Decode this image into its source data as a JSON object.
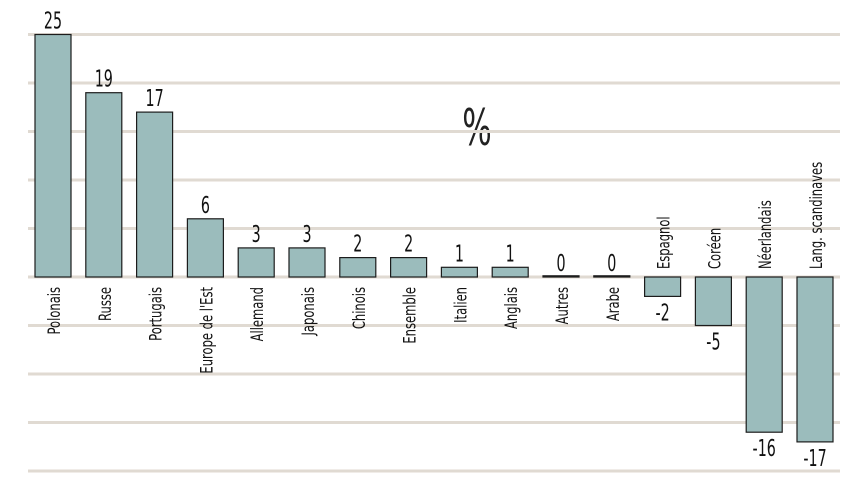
{
  "chart_data": {
    "type": "bar",
    "unit_label": "%",
    "categories": [
      "Polonais",
      "Russe",
      "Portugais",
      "Europe de l'Est",
      "Allemand",
      "Japonais",
      "Chinois",
      "Ensemble",
      "Italien",
      "Anglais",
      "Autres",
      "Arabe",
      "Espagnol",
      "Coréen",
      "Néerlandais",
      "Lang. scandinaves"
    ],
    "values": [
      25,
      19,
      17,
      6,
      3,
      3,
      2,
      2,
      1,
      1,
      0,
      0,
      -2,
      -5,
      -16,
      -17
    ],
    "value_labels": [
      "25",
      "19",
      "17",
      "6",
      "3",
      "3",
      "2",
      "2",
      "1",
      "1",
      "0",
      "0",
      "-2",
      "-5",
      "-16",
      "-17"
    ],
    "ylim": [
      -20,
      25
    ],
    "grid": true,
    "colors": {
      "bar": "#9bbcbc",
      "bar_stroke": "#1c1c1c",
      "grid": "#e0dad2",
      "text": "#111111"
    }
  }
}
